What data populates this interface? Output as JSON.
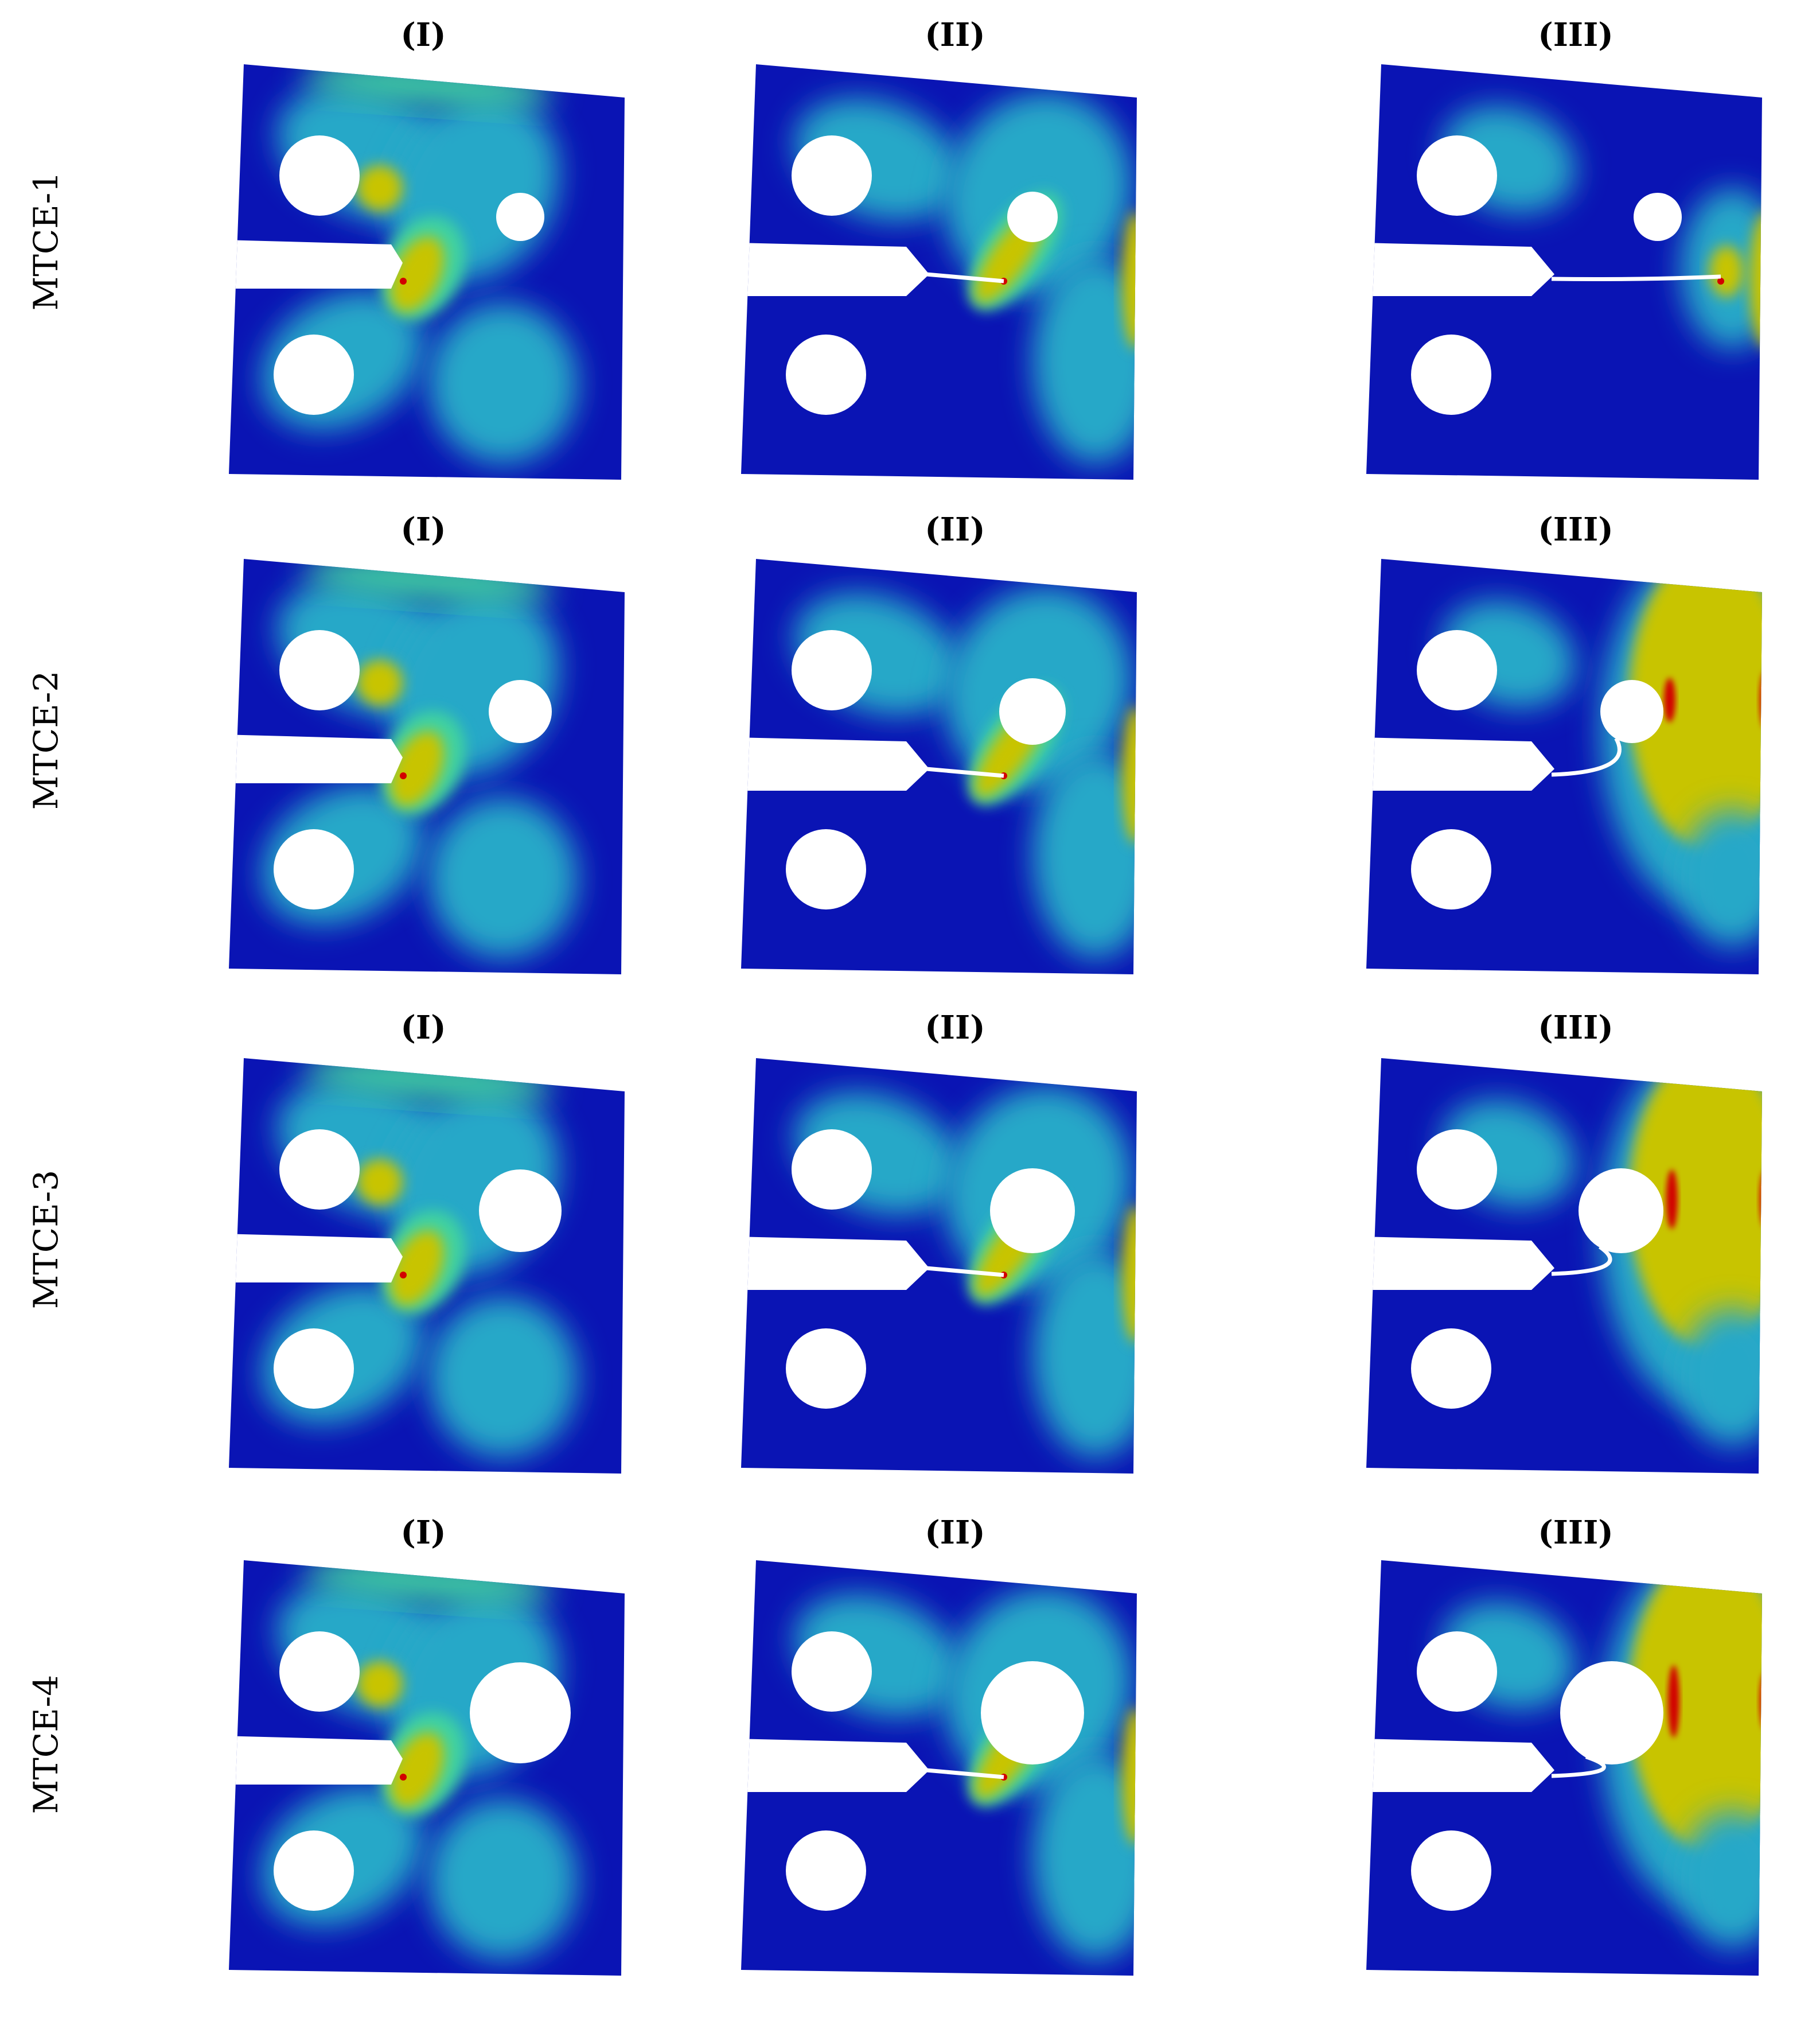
{
  "rows": [
    {
      "label": "MTCE-1",
      "panels": [
        {
          "stage": "(I)",
          "crack": "notch-tip"
        },
        {
          "stage": "(II)",
          "crack": "short"
        },
        {
          "stage": "(III)",
          "crack": "long-straight"
        }
      ]
    },
    {
      "label": "MTCE-2",
      "panels": [
        {
          "stage": "(I)",
          "crack": "notch-tip"
        },
        {
          "stage": "(II)",
          "crack": "short"
        },
        {
          "stage": "(III)",
          "crack": "to-hole"
        }
      ]
    },
    {
      "label": "MTCE-3",
      "panels": [
        {
          "stage": "(I)",
          "crack": "notch-tip"
        },
        {
          "stage": "(II)",
          "crack": "short"
        },
        {
          "stage": "(III)",
          "crack": "to-hole"
        }
      ]
    },
    {
      "label": "MTCE-4",
      "panels": [
        {
          "stage": "(I)",
          "crack": "notch-tip"
        },
        {
          "stage": "(II)",
          "crack": "short"
        },
        {
          "stage": "(III)",
          "crack": "to-hole"
        }
      ]
    }
  ],
  "colors": {
    "field_low": "#0a14b4",
    "field_mid": "#28a8c8",
    "field_green": "#40d2a0",
    "field_high": "#c8c400",
    "field_peak": "#d20000",
    "hole": "#ffffff",
    "text": "#000000"
  }
}
